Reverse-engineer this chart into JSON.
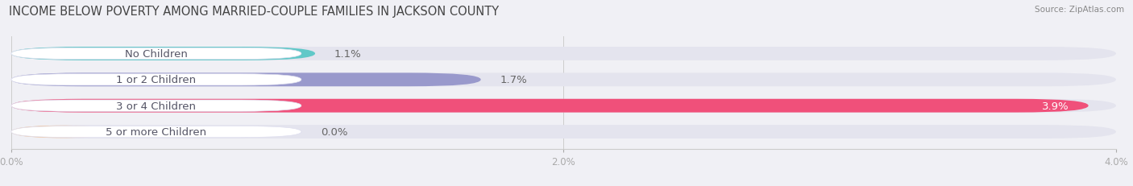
{
  "title": "INCOME BELOW POVERTY AMONG MARRIED-COUPLE FAMILIES IN JACKSON COUNTY",
  "source": "Source: ZipAtlas.com",
  "categories": [
    "No Children",
    "1 or 2 Children",
    "3 or 4 Children",
    "5 or more Children"
  ],
  "values": [
    1.1,
    1.7,
    3.9,
    0.0
  ],
  "bar_colors": [
    "#60c8c8",
    "#9999cc",
    "#f0507a",
    "#f5c9a0"
  ],
  "xlim": [
    0,
    4.0
  ],
  "xticks": [
    0.0,
    2.0,
    4.0
  ],
  "xticklabels": [
    "0.0%",
    "2.0%",
    "4.0%"
  ],
  "label_fontsize": 9.5,
  "title_fontsize": 10.5,
  "bar_height": 0.52,
  "background_color": "#f0f0f5",
  "bar_bg_color": "#e4e4ee",
  "value_label_color": "#666666",
  "label_text_color": "#555566"
}
